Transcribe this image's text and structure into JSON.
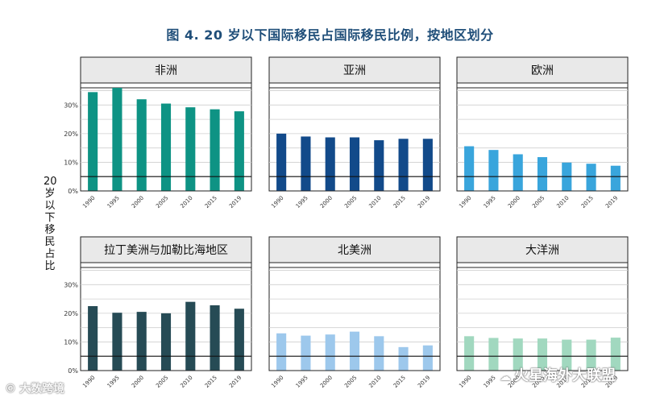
{
  "title": "图 4. 20 岁以下国际移民占国际移民比例，按地区划分",
  "y_axis_label": "20岁以下移民占比",
  "watermarks": {
    "left": "大数跨境",
    "right": "火星海外大联盟",
    "left_icon": "circle-logo-icon",
    "right_icon": "wechat-icon"
  },
  "colors": {
    "africa": "#0e9384",
    "asia": "#124a8a",
    "europe": "#39a5dc",
    "latam": "#264b55",
    "north_america": "#9dc8ec",
    "oceania": "#a1d8bf",
    "panel_header_bg": "#e9e9e9",
    "grid": "#cfcfcf",
    "title": "#1f4e79"
  },
  "chart_data": [
    {
      "type": "bar",
      "title": "非洲",
      "categories": [
        "1990",
        "1995",
        "2000",
        "2005",
        "2010",
        "2015",
        "2019"
      ],
      "values": [
        34.5,
        36,
        32,
        30.5,
        29.2,
        28.5,
        27.8
      ],
      "ylim": [
        0,
        35
      ],
      "yticks": [
        "0%",
        "10%",
        "20%",
        "30%"
      ],
      "reference_line": 5,
      "color_key": "africa",
      "show_y_ticks": true
    },
    {
      "type": "bar",
      "title": "亚洲",
      "categories": [
        "1990",
        "1995",
        "2000",
        "2005",
        "2010",
        "2015",
        "2019"
      ],
      "values": [
        20,
        19,
        18.7,
        18.7,
        17.7,
        18.2,
        18.2
      ],
      "ylim": [
        0,
        35
      ],
      "yticks": [
        "0%",
        "10%",
        "20%",
        "30%"
      ],
      "reference_line": 5,
      "color_key": "asia",
      "show_y_ticks": false
    },
    {
      "type": "bar",
      "title": "欧洲",
      "categories": [
        "1990",
        "1995",
        "2000",
        "2005",
        "2010",
        "2015",
        "2019"
      ],
      "values": [
        15.6,
        14.3,
        12.8,
        11.8,
        9.9,
        9.5,
        8.8
      ],
      "ylim": [
        0,
        35
      ],
      "yticks": [
        "0%",
        "10%",
        "20%",
        "30%"
      ],
      "reference_line": 5,
      "color_key": "europe",
      "show_y_ticks": false
    },
    {
      "type": "bar",
      "title": "拉丁美洲与加勒比海地区",
      "categories": [
        "1990",
        "1995",
        "2000",
        "2005",
        "2010",
        "2015",
        "2019"
      ],
      "values": [
        22.5,
        20.2,
        20.5,
        20,
        24,
        22.8,
        21.6
      ],
      "ylim": [
        0,
        35
      ],
      "yticks": [
        "0%",
        "10%",
        "20%",
        "30%"
      ],
      "reference_line": 5,
      "color_key": "latam",
      "show_y_ticks": true
    },
    {
      "type": "bar",
      "title": "北美洲",
      "categories": [
        "1990",
        "1995",
        "2000",
        "2005",
        "2010",
        "2015",
        "2019"
      ],
      "values": [
        13,
        12.2,
        12.6,
        13.6,
        12,
        8.2,
        8.8
      ],
      "ylim": [
        0,
        35
      ],
      "yticks": [
        "0%",
        "10%",
        "20%",
        "30%"
      ],
      "reference_line": 5,
      "color_key": "north_america",
      "show_y_ticks": false
    },
    {
      "type": "bar",
      "title": "大洋洲",
      "categories": [
        "1990",
        "1995",
        "2000",
        "2005",
        "2010",
        "2015",
        "2019"
      ],
      "values": [
        12,
        11.4,
        11.2,
        11.2,
        10.8,
        10.8,
        11.5
      ],
      "ylim": [
        0,
        35
      ],
      "yticks": [
        "0%",
        "10%",
        "20%",
        "30%"
      ],
      "reference_line": 5,
      "color_key": "oceania",
      "show_y_ticks": false
    }
  ]
}
